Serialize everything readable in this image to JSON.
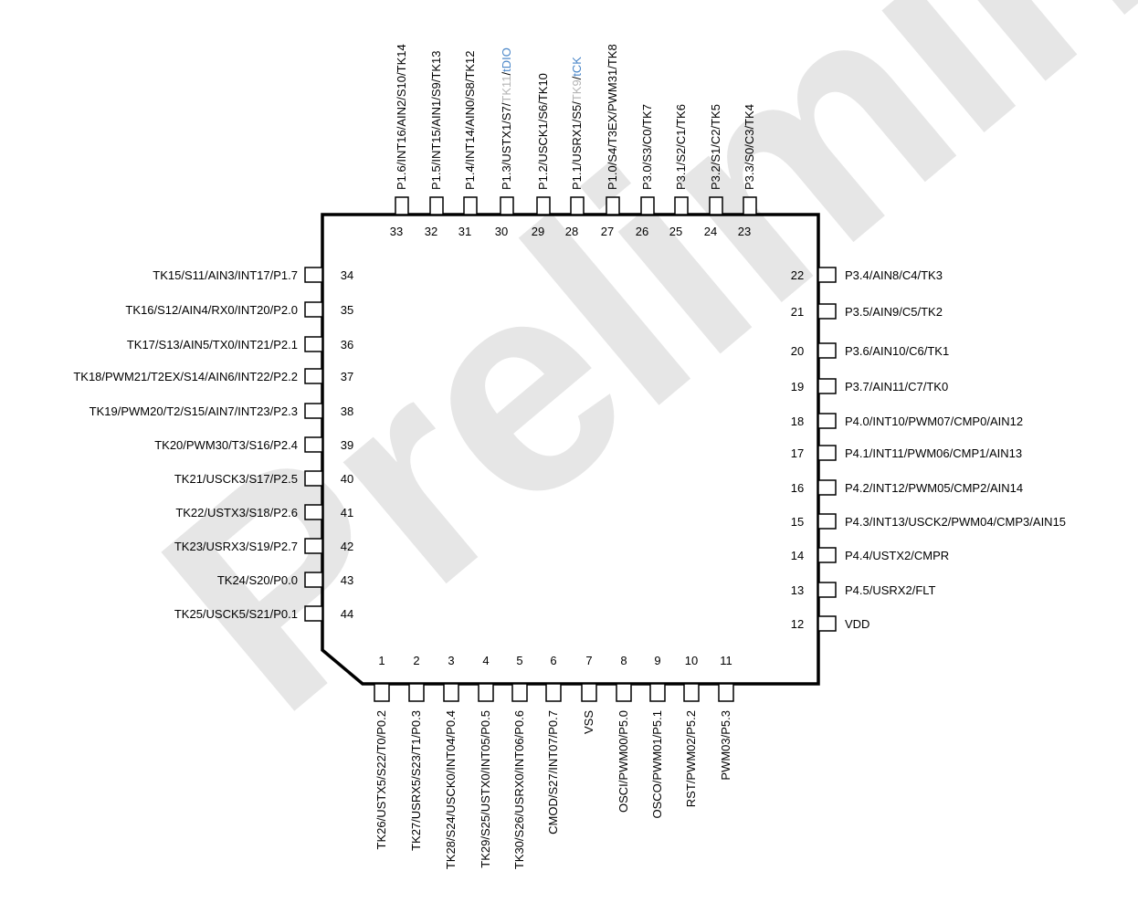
{
  "watermark": "Preliminary",
  "colors": {
    "outline": "#000000",
    "watermark": "#e6e6e6",
    "debug_blue": "#4a86c8",
    "dim_gray": "#b4b4b4"
  },
  "pins_top": [
    {
      "num": "33",
      "label": [
        {
          "t": "P1.6/INT16/AIN2/S10/TK14"
        }
      ]
    },
    {
      "num": "32",
      "label": [
        {
          "t": "P1.5/INT15/AIN1/S9/TK13"
        }
      ]
    },
    {
      "num": "31",
      "label": [
        {
          "t": "P1.4/INT14/AIN0/S8/TK12"
        }
      ]
    },
    {
      "num": "30",
      "label": [
        {
          "t": "P1.3/USTX1/S7/"
        },
        {
          "t": "TK11",
          "c": "gray"
        },
        {
          "t": "/"
        },
        {
          "t": "tDIO",
          "c": "blue"
        }
      ]
    },
    {
      "num": "29",
      "label": [
        {
          "t": "P1.2/USCK1/S6/TK10"
        }
      ]
    },
    {
      "num": "28",
      "label": [
        {
          "t": "P1.1/USRX1/S5/"
        },
        {
          "t": "TK9",
          "c": "gray"
        },
        {
          "t": "/"
        },
        {
          "t": "tCK",
          "c": "blue"
        }
      ]
    },
    {
      "num": "27",
      "label": [
        {
          "t": "P1.0/S4/T3EX/PWM31/TK8"
        }
      ]
    },
    {
      "num": "26",
      "label": [
        {
          "t": "P3.0/S3/C0/TK7"
        }
      ]
    },
    {
      "num": "25",
      "label": [
        {
          "t": "P3.1/S2/C1/TK6"
        }
      ]
    },
    {
      "num": "24",
      "label": [
        {
          "t": "P3.2/S1/C2/TK5"
        }
      ]
    },
    {
      "num": "23",
      "label": [
        {
          "t": "P3.3/S0/C3/TK4"
        }
      ]
    }
  ],
  "pins_left": [
    {
      "num": "34",
      "label": "TK15/S11/AIN3/INT17/P1.7"
    },
    {
      "num": "35",
      "label": "TK16/S12/AIN4/RX0/INT20/P2.0"
    },
    {
      "num": "36",
      "label": "TK17/S13/AIN5/TX0/INT21/P2.1"
    },
    {
      "num": "37",
      "label": "TK18/PWM21/T2EX/S14/AIN6/INT22/P2.2"
    },
    {
      "num": "38",
      "label": "TK19/PWM20/T2/S15/AIN7/INT23/P2.3"
    },
    {
      "num": "39",
      "label": "TK20/PWM30/T3/S16/P2.4"
    },
    {
      "num": "40",
      "label": "TK21/USCK3/S17/P2.5"
    },
    {
      "num": "41",
      "label": "TK22/USTX3/S18/P2.6"
    },
    {
      "num": "42",
      "label": "TK23/USRX3/S19/P2.7"
    },
    {
      "num": "43",
      "label": "TK24/S20/P0.0"
    },
    {
      "num": "44",
      "label": "TK25/USCK5/S21/P0.1"
    }
  ],
  "pins_right": [
    {
      "num": "22",
      "label": "P3.4/AIN8/C4/TK3"
    },
    {
      "num": "21",
      "label": "P3.5/AIN9/C5/TK2"
    },
    {
      "num": "20",
      "label": "P3.6/AIN10/C6/TK1"
    },
    {
      "num": "19",
      "label": "P3.7/AIN11/C7/TK0"
    },
    {
      "num": "18",
      "label": "P4.0/INT10/PWM07/CMP0/AIN12"
    },
    {
      "num": "17",
      "label": "P4.1/INT11/PWM06/CMP1/AIN13"
    },
    {
      "num": "16",
      "label": "P4.2/INT12/PWM05/CMP2/AIN14"
    },
    {
      "num": "15",
      "label": "P4.3/INT13/USCK2/PWM04/CMP3/AIN15"
    },
    {
      "num": "14",
      "label": "P4.4/USTX2/CMPR"
    },
    {
      "num": "13",
      "label": "P4.5/USRX2/FLT"
    },
    {
      "num": "12",
      "label": "VDD"
    }
  ],
  "pins_bottom": [
    {
      "num": "1",
      "label": "TK26/USTX5/S22/T0/P0.2"
    },
    {
      "num": "2",
      "label": "TK27/USRX5/S23/T1/P0.3"
    },
    {
      "num": "3",
      "label": "TK28/S24/USCK0/INT04/P0.4"
    },
    {
      "num": "4",
      "label": "TK29/S25/USTX0/INT05/P0.5"
    },
    {
      "num": "5",
      "label": "TK30/S26/USRX0/INT06/P0.6"
    },
    {
      "num": "6",
      "label": "CMOD/S27/INT07/P0.7"
    },
    {
      "num": "7",
      "label": "VSS"
    },
    {
      "num": "8",
      "label": "OSCI/PWM00/P5.0"
    },
    {
      "num": "9",
      "label": "OSCO/PWM01/P5.1"
    },
    {
      "num": "10",
      "label": "RST/PWM02/P5.2"
    },
    {
      "num": "11",
      "label": "PWM03/P5.3"
    }
  ]
}
